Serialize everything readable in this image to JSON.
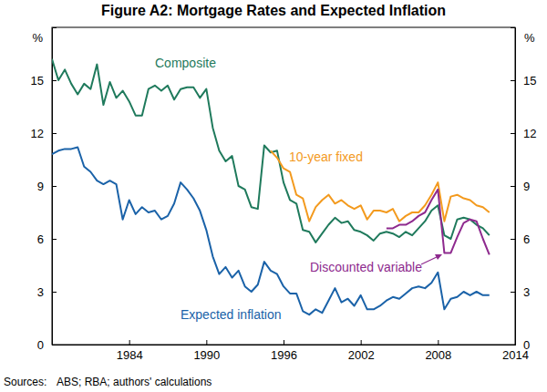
{
  "chart_data": {
    "type": "line",
    "title": "Figure A2: Mortgage Rates and Expected Inflation",
    "ylabel": "%",
    "source_label": "Sources:",
    "source": "ABS; RBA; authors' calculations",
    "grid": false,
    "x": [
      1978,
      1978.5,
      1979,
      1979.5,
      1980,
      1980.5,
      1981,
      1981.5,
      1982,
      1982.5,
      1983,
      1983.5,
      1984,
      1984.5,
      1985,
      1985.5,
      1986,
      1986.5,
      1987,
      1987.5,
      1988,
      1988.5,
      1989,
      1989.5,
      1990,
      1990.5,
      1991,
      1991.5,
      1992,
      1992.5,
      1993,
      1993.5,
      1994,
      1994.5,
      1995,
      1995.5,
      1996,
      1996.5,
      1997,
      1997.5,
      1998,
      1998.5,
      1999,
      1999.5,
      2000,
      2000.5,
      2001,
      2001.5,
      2002,
      2002.5,
      2003,
      2003.5,
      2004,
      2004.5,
      2005,
      2005.5,
      2006,
      2006.5,
      2007,
      2007.5,
      2008,
      2008.5,
      2009,
      2009.5,
      2010,
      2010.5,
      2011,
      2011.5,
      2012
    ],
    "xlim": [
      1978,
      2014
    ],
    "xticks": [
      1984,
      1990,
      1996,
      2002,
      2008,
      2014
    ],
    "ylim": [
      0,
      18
    ],
    "yticks": [
      0,
      3,
      6,
      9,
      12,
      15
    ],
    "series": [
      {
        "name": "Composite",
        "color": "#1f7a5c",
        "values": [
          16.2,
          15.0,
          15.6,
          14.8,
          14.2,
          14.8,
          14.5,
          15.9,
          13.6,
          14.9,
          14.0,
          14.4,
          13.8,
          13.0,
          13.0,
          14.5,
          14.7,
          14.4,
          14.7,
          13.9,
          14.5,
          14.6,
          14.6,
          14.0,
          14.5,
          12.3,
          11.0,
          10.4,
          10.7,
          9.0,
          8.8,
          7.8,
          7.7,
          11.3,
          10.9,
          11.0,
          9.2,
          8.2,
          8.0,
          6.5,
          6.4,
          5.8,
          6.3,
          6.8,
          7.2,
          6.9,
          7.0,
          6.5,
          6.4,
          6.2,
          5.9,
          6.3,
          6.4,
          6.3,
          6.1,
          6.4,
          6.2,
          6.6,
          7.0,
          7.6,
          7.9,
          6.2,
          6.0,
          7.1,
          7.2,
          7.1,
          6.8,
          6.6,
          6.2
        ]
      },
      {
        "name": "10-year fixed",
        "color": "#f39a1e",
        "values": [
          null,
          null,
          null,
          null,
          null,
          null,
          null,
          null,
          null,
          null,
          null,
          null,
          null,
          null,
          null,
          null,
          null,
          null,
          null,
          null,
          null,
          null,
          null,
          null,
          null,
          null,
          null,
          null,
          null,
          null,
          null,
          null,
          null,
          null,
          11.0,
          10.6,
          10.0,
          9.8,
          8.5,
          8.3,
          7.0,
          7.8,
          8.2,
          8.5,
          8.0,
          8.2,
          7.9,
          7.7,
          7.9,
          7.1,
          7.6,
          7.6,
          7.5,
          7.7,
          7.0,
          7.3,
          7.5,
          7.5,
          7.9,
          8.5,
          9.2,
          7.0,
          8.4,
          8.5,
          8.3,
          8.2,
          7.9,
          7.8,
          7.5
        ]
      },
      {
        "name": "Discounted variable",
        "color": "#8e2a8e",
        "values": [
          null,
          null,
          null,
          null,
          null,
          null,
          null,
          null,
          null,
          null,
          null,
          null,
          null,
          null,
          null,
          null,
          null,
          null,
          null,
          null,
          null,
          null,
          null,
          null,
          null,
          null,
          null,
          null,
          null,
          null,
          null,
          null,
          null,
          null,
          null,
          null,
          null,
          null,
          null,
          null,
          null,
          null,
          null,
          null,
          null,
          null,
          null,
          null,
          null,
          null,
          null,
          null,
          6.6,
          6.6,
          6.8,
          6.8,
          7.0,
          7.3,
          7.5,
          8.2,
          8.8,
          5.2,
          5.2,
          6.1,
          6.9,
          7.1,
          7.0,
          6.0,
          5.1
        ]
      },
      {
        "name": "Expected inflation",
        "color": "#1a62a8",
        "values": [
          10.8,
          11.0,
          11.1,
          11.1,
          11.2,
          10.1,
          9.8,
          9.3,
          9.1,
          9.3,
          9.1,
          7.1,
          8.2,
          7.4,
          7.8,
          7.5,
          7.6,
          7.1,
          7.3,
          8.0,
          9.2,
          8.8,
          8.3,
          7.6,
          6.5,
          5.0,
          4.0,
          4.4,
          3.8,
          4.2,
          3.3,
          3.0,
          3.4,
          4.7,
          4.2,
          4.0,
          3.3,
          2.9,
          2.9,
          1.9,
          1.7,
          2.0,
          1.8,
          2.5,
          3.2,
          2.4,
          2.6,
          2.2,
          2.8,
          2.0,
          2.0,
          2.2,
          2.5,
          2.7,
          2.6,
          2.9,
          3.2,
          3.3,
          3.2,
          3.5,
          4.1,
          2.0,
          2.6,
          2.7,
          3.0,
          2.8,
          3.0,
          2.8,
          2.8
        ]
      }
    ]
  }
}
